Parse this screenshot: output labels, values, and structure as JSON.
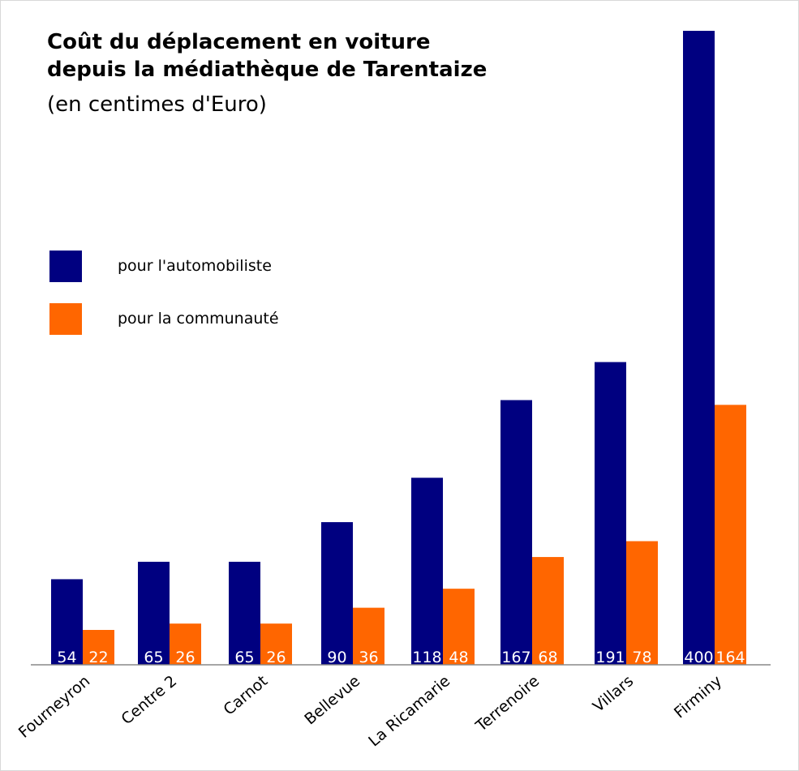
{
  "chart_data": {
    "type": "bar",
    "title_lines": [
      "Coût du déplacement en voiture",
      "depuis la médiathèque de Tarentaize"
    ],
    "subtitle": "(en centimes d'Euro)",
    "categories": [
      "Fourneyron",
      "Centre 2",
      "Carnot",
      "Bellevue",
      "La Ricamarie",
      "Terrenoire",
      "Villars",
      "Firminy"
    ],
    "series": [
      {
        "name": "pour l'automobiliste",
        "color": "#000080",
        "values": [
          54,
          65,
          65,
          90,
          118,
          167,
          191,
          400
        ]
      },
      {
        "name": "pour la communauté",
        "color": "#ff6600",
        "values": [
          22,
          26,
          26,
          36,
          48,
          68,
          78,
          164
        ]
      }
    ],
    "ylim": [
      0,
      400
    ],
    "grid": false,
    "legend_position": "left"
  }
}
